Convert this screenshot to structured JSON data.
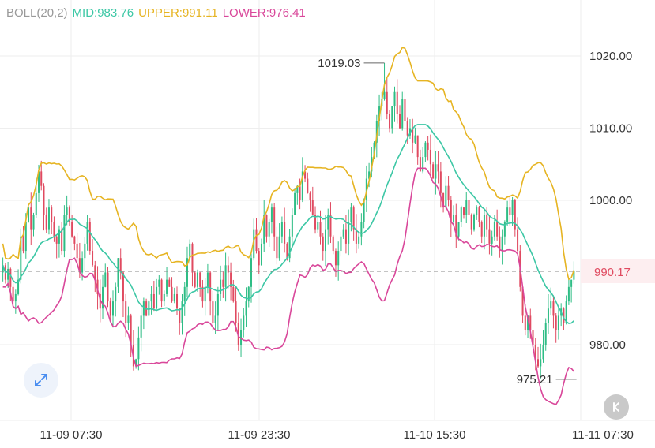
{
  "legend": {
    "boll": "BOLL(20,2)",
    "mid": "MID:983.76",
    "upper": "UPPER:991.11",
    "lower": "LOWER:976.41"
  },
  "colors": {
    "up": "#2ebd85",
    "down": "#e04a60",
    "mid": "#3cc7a5",
    "upper": "#e6b422",
    "lower": "#d9479a",
    "boll_label": "#999999",
    "grid": "#eeeeee"
  },
  "icons": {
    "expand": "expand-arrows-icon",
    "k_button": "k-letter-icon"
  },
  "chart_data": {
    "type": "candlestick",
    "y_ticks": [
      "1020.00",
      "1010.00",
      "1000.00",
      "980.00"
    ],
    "y_tick_values": [
      1020,
      1010,
      1000,
      980
    ],
    "x_ticks": [
      "11-09 07:30",
      "11-09 23:30",
      "11-10 15:30",
      "11-11 07:30"
    ],
    "ylim": [
      971,
      1027
    ],
    "last_price": 990.17,
    "last_price_label": "990.17",
    "max_annotation": {
      "label": "1019.03",
      "value": 1019.03,
      "index": 149
    },
    "min_annotation": {
      "label": "975.21",
      "value": 975.21,
      "index": 224
    },
    "close": [
      991.0,
      989.0,
      990.5,
      988.0,
      986.0,
      987.0,
      989.0,
      995.0,
      993.0,
      997.0,
      999.0,
      996.0,
      998.0,
      1001.0,
      1004.0,
      1002.0,
      998.0,
      996.0,
      999.0,
      997.0,
      995.0,
      994.0,
      996.0,
      993.0,
      998.0,
      999.0,
      997.0,
      995.0,
      994.0,
      992.0,
      990.0,
      992.0,
      994.0,
      997.0,
      993.0,
      991.0,
      989.0,
      987.0,
      985.0,
      988.0,
      990.0,
      986.0,
      984.0,
      986.0,
      988.0,
      992.0,
      990.0,
      986.0,
      983.0,
      984.0,
      980.0,
      977.0,
      978.0,
      981.0,
      984.0,
      986.0,
      984.0,
      986.0,
      987.0,
      985.0,
      988.0,
      989.0,
      986.0,
      987.0,
      989.0,
      988.0,
      986.0,
      987.0,
      985.0,
      983.0,
      986.0,
      988.0,
      992.0,
      994.0,
      990.0,
      988.0,
      990.0,
      988.0,
      986.0,
      988.0,
      990.0,
      986.0,
      983.0,
      984.0,
      987.0,
      989.0,
      988.0,
      991.0,
      990.0,
      988.0,
      986.0,
      983.0,
      980.0,
      982.0,
      984.0,
      986.0,
      988.0,
      992.0,
      996.0,
      993.0,
      991.0,
      994.0,
      998.0,
      995.0,
      997.0,
      999.0,
      995.0,
      992.0,
      995.0,
      997.0,
      994.0,
      992.0,
      995.0,
      998.0,
      1001.0,
      1002.0,
      1000.0,
      1004.0,
      1003.0,
      1001.0,
      1000.0,
      998.0,
      996.0,
      997.0,
      995.0,
      993.0,
      996.0,
      998.0,
      995.0,
      993.0,
      991.0,
      993.0,
      995.0,
      996.0,
      994.0,
      997.0,
      999.0,
      996.0,
      994.0,
      995.0,
      997.0,
      1000.0,
      1003.0,
      1004.0,
      1006.0,
      1008.0,
      1011.0,
      1013.0,
      1014.0,
      1015.0,
      1012.0,
      1010.0,
      1013.0,
      1015.0,
      1012.0,
      1010.0,
      1014.0,
      1011.0,
      1009.0,
      1010.0,
      1008.0,
      1009.0,
      1006.0,
      1004.0,
      1006.0,
      1008.0,
      1007.0,
      1005.0,
      1003.0,
      1005.0,
      1004.0,
      1001.0,
      999.0,
      1002.0,
      1000.0,
      997.0,
      998.0,
      995.0,
      997.0,
      999.0,
      998.0,
      1000.0,
      998.0,
      996.0,
      998.0,
      999.0,
      997.0,
      995.0,
      998.0,
      996.0,
      994.0,
      995.0,
      997.0,
      995.0,
      993.0,
      995.0,
      997.0,
      999.0,
      998.0,
      1000.0,
      996.0,
      993.0,
      988.0,
      984.0,
      982.0,
      984.0,
      982.0,
      980.0,
      978.0,
      977.0,
      978.0,
      980.0,
      983.0,
      985.0,
      986.0,
      984.0,
      982.0,
      984.0,
      985.0,
      983.0,
      986.0,
      988.0,
      989.0,
      990.17
    ]
  }
}
